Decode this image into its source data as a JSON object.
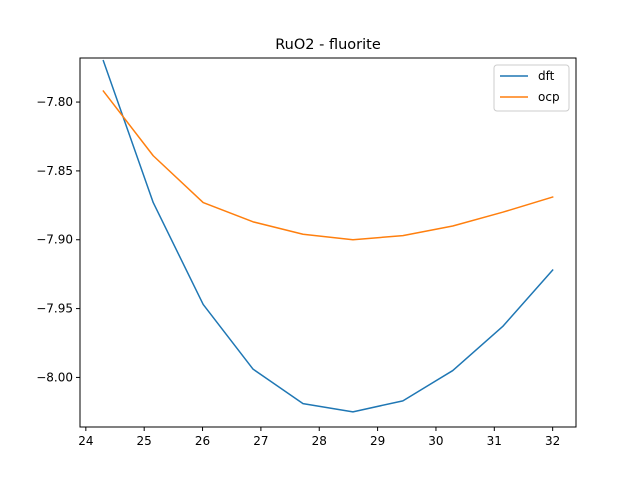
{
  "chart_data": {
    "type": "line",
    "title": "RuO2 - fluorite",
    "xlabel": "",
    "ylabel": "",
    "xlim": [
      23.9,
      32.4
    ],
    "ylim": [
      -8.036,
      -7.768
    ],
    "xticks": [
      24,
      25,
      26,
      27,
      28,
      29,
      30,
      31,
      32
    ],
    "yticks": [
      -8.0,
      -7.95,
      -7.9,
      -7.85,
      -7.8
    ],
    "ytick_labels": [
      "−8.00",
      "−7.95",
      "−7.90",
      "−7.85",
      "−7.80"
    ],
    "grid": false,
    "legend_position": "top-right",
    "x": [
      24.3,
      25.155,
      26.011,
      26.866,
      27.722,
      28.577,
      29.433,
      30.288,
      31.144,
      32.0
    ],
    "series": [
      {
        "name": "dft",
        "color": "#1f77b4",
        "values": [
          -7.77,
          -7.873,
          -7.947,
          -7.994,
          -8.019,
          -8.025,
          -8.017,
          -7.995,
          -7.963,
          -7.922
        ]
      },
      {
        "name": "ocp",
        "color": "#ff7f0e",
        "values": [
          -7.792,
          -7.839,
          -7.873,
          -7.887,
          -7.896,
          -7.9,
          -7.897,
          -7.89,
          -7.88,
          -7.869
        ]
      }
    ]
  }
}
